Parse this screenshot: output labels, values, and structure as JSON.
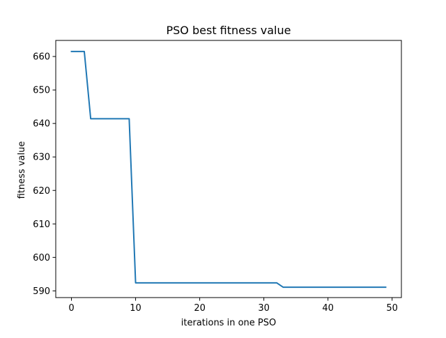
{
  "chart_data": {
    "type": "line",
    "title": "PSO best fitness value",
    "xlabel": "iterations in one PSO",
    "ylabel": "fitness value",
    "xlim": [
      -2.45,
      51.45
    ],
    "ylim": [
      588.0,
      664.8
    ],
    "xticks": [
      0,
      10,
      20,
      30,
      40,
      50
    ],
    "yticks": [
      590,
      600,
      610,
      620,
      630,
      640,
      650,
      660
    ],
    "grid": false,
    "legend": "none",
    "series": [
      {
        "color": "#1f77b4",
        "x": [
          0,
          1,
          2,
          3,
          4,
          5,
          6,
          7,
          8,
          9,
          10,
          11,
          12,
          13,
          14,
          15,
          16,
          17,
          18,
          19,
          20,
          21,
          22,
          23,
          24,
          25,
          26,
          27,
          28,
          29,
          30,
          31,
          32,
          33,
          34,
          35,
          36,
          37,
          38,
          39,
          40,
          41,
          42,
          43,
          44,
          45,
          46,
          47,
          48,
          49
        ],
        "y": [
          661.5,
          661.5,
          661.5,
          641.4,
          641.4,
          641.4,
          641.4,
          641.4,
          641.4,
          641.4,
          592.4,
          592.4,
          592.4,
          592.4,
          592.4,
          592.4,
          592.4,
          592.4,
          592.4,
          592.4,
          592.4,
          592.4,
          592.4,
          592.4,
          592.4,
          592.4,
          592.4,
          592.4,
          592.4,
          592.4,
          592.4,
          592.4,
          592.4,
          591.1,
          591.1,
          591.1,
          591.1,
          591.1,
          591.1,
          591.1,
          591.1,
          591.1,
          591.1,
          591.1,
          591.1,
          591.1,
          591.1,
          591.1,
          591.1,
          591.1
        ]
      }
    ]
  }
}
